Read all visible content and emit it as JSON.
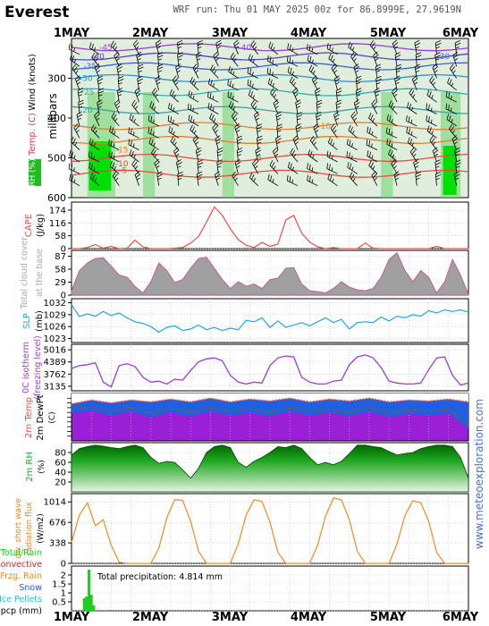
{
  "header": {
    "location": "Everest",
    "run_info": "WRF run: Thu 01 MAY 2025 00z for 86.8999E, 27.9619N"
  },
  "date_labels": [
    "1MAY",
    "2MAY",
    "3MAY",
    "4MAY",
    "5MAY",
    "6MAY"
  ],
  "watermark": "www.meteoexploration.com",
  "colors": {
    "background": "#ffffff",
    "upper_fill": "#d9ead9",
    "rh_green": "#00cc00",
    "cape": "#e8504a",
    "cloud": "#a0a0a0",
    "slp": "#2aa3df",
    "iso0": "#9b3fd0",
    "temp_band": "#9b1fd6",
    "sw": "#ee8a2a",
    "precip": "#1fcc1f",
    "watermark": "#4a6fd0"
  },
  "chart_data": [
    {
      "type": "contour",
      "panel": "upper_air",
      "ylabel": "millibars",
      "left_labels": [
        "Wind (knots)",
        "Temp. (C)",
        "RH (%)"
      ],
      "ylim": [
        600,
        200
      ],
      "yticks": [
        300,
        400,
        500,
        600
      ],
      "contour_labels": [
        "-45",
        "-40",
        "-35",
        "-30",
        "-25",
        "-20",
        "-15",
        "-10",
        "-5",
        "-5",
        "-10",
        "-5",
        "-40",
        "-30"
      ]
    },
    {
      "type": "line",
      "panel": "cape",
      "label": "CAPE",
      "unit": "(J/kg)",
      "yticks": [
        0,
        58,
        116,
        174
      ],
      "ylim": [
        0,
        210
      ],
      "x": [
        0,
        0.1,
        0.2,
        0.3,
        0.4,
        0.5,
        0.6,
        0.7,
        0.8,
        0.9,
        1.0,
        1.1,
        1.2,
        1.3,
        1.4,
        1.5,
        1.6,
        1.7,
        1.8,
        1.9,
        2.0,
        2.1,
        2.2,
        2.3,
        2.4,
        2.5,
        2.6,
        2.7,
        2.8,
        2.9,
        3.0,
        3.1,
        3.2,
        3.3,
        3.4,
        3.5,
        3.6,
        3.7,
        3.8,
        3.9,
        4.0,
        4.1,
        4.2,
        4.3,
        4.4,
        4.5,
        4.6,
        4.7,
        4.8,
        4.9,
        5.0
      ],
      "values": [
        0,
        0,
        5,
        18,
        2,
        10,
        0,
        2,
        38,
        8,
        0,
        0,
        0,
        2,
        5,
        25,
        55,
        120,
        188,
        150,
        90,
        40,
        15,
        5,
        28,
        10,
        20,
        130,
        150,
        70,
        30,
        8,
        0,
        5,
        0,
        0,
        0,
        25,
        2,
        0,
        0,
        0,
        0,
        0,
        0,
        0,
        10,
        0,
        0,
        0,
        0
      ]
    },
    {
      "type": "area",
      "panel": "cloud",
      "label": "Total cloud cover",
      "sublabel": "at the base",
      "unit": "%",
      "yticks": [
        0,
        29,
        58,
        87
      ],
      "ylim": [
        0,
        100
      ],
      "x": [
        0,
        0.1,
        0.2,
        0.3,
        0.4,
        0.5,
        0.6,
        0.7,
        0.8,
        0.9,
        1.0,
        1.1,
        1.2,
        1.3,
        1.4,
        1.5,
        1.6,
        1.7,
        1.8,
        1.9,
        2.0,
        2.1,
        2.2,
        2.3,
        2.4,
        2.5,
        2.6,
        2.7,
        2.8,
        2.9,
        3.0,
        3.1,
        3.2,
        3.3,
        3.4,
        3.5,
        3.6,
        3.7,
        3.8,
        3.9,
        4.0,
        4.1,
        4.2,
        4.3,
        4.4,
        4.5,
        4.6,
        4.7,
        4.8,
        4.9,
        5.0
      ],
      "values": [
        10,
        55,
        72,
        82,
        84,
        65,
        45,
        40,
        20,
        5,
        30,
        72,
        55,
        28,
        35,
        60,
        82,
        85,
        60,
        35,
        15,
        30,
        20,
        25,
        15,
        35,
        38,
        60,
        62,
        25,
        10,
        8,
        5,
        15,
        30,
        18,
        12,
        10,
        15,
        40,
        80,
        95,
        55,
        30,
        55,
        40,
        5,
        30,
        80,
        45,
        2
      ]
    },
    {
      "type": "line",
      "panel": "slp",
      "label": "SLP",
      "unit": "(mb)",
      "yticks": [
        1023,
        1026,
        1029,
        1032
      ],
      "ylim": [
        1022,
        1033
      ],
      "x": [
        0,
        0.1,
        0.2,
        0.3,
        0.4,
        0.5,
        0.6,
        0.7,
        0.8,
        0.9,
        1.0,
        1.1,
        1.2,
        1.3,
        1.4,
        1.5,
        1.6,
        1.7,
        1.8,
        1.9,
        2.0,
        2.1,
        2.2,
        2.3,
        2.4,
        2.5,
        2.6,
        2.7,
        2.8,
        2.9,
        3.0,
        3.1,
        3.2,
        3.3,
        3.4,
        3.5,
        3.6,
        3.7,
        3.8,
        3.9,
        4.0,
        4.1,
        4.2,
        4.3,
        4.4,
        4.5,
        4.6,
        4.7,
        4.8,
        4.9,
        5.0
      ],
      "values": [
        1031.5,
        1028.5,
        1029.2,
        1028.6,
        1029.8,
        1028.8,
        1029.4,
        1028.2,
        1027.2,
        1026.8,
        1026.0,
        1024.6,
        1025.8,
        1026.2,
        1025.0,
        1025.4,
        1026.4,
        1025.2,
        1025.8,
        1025.0,
        1025.6,
        1025.2,
        1027.6,
        1027.2,
        1028.2,
        1025.8,
        1027.4,
        1025.8,
        1026.4,
        1027.0,
        1026.2,
        1027.2,
        1028.2,
        1027.0,
        1027.8,
        1025.4,
        1027.0,
        1027.2,
        1027.0,
        1028.4,
        1027.4,
        1028.6,
        1028.2,
        1029.0,
        1028.6,
        1030.0,
        1029.4,
        1030.2,
        1029.8,
        1030.2,
        1029.6
      ]
    },
    {
      "type": "line",
      "panel": "iso0",
      "label": "0C isotherm",
      "sublabel": "(freezing level)",
      "yticks": [
        3135,
        3762,
        4389,
        5016
      ],
      "ylim": [
        2900,
        5300
      ],
      "x": [
        0,
        0.1,
        0.2,
        0.3,
        0.4,
        0.5,
        0.6,
        0.7,
        0.8,
        0.9,
        1.0,
        1.1,
        1.2,
        1.3,
        1.4,
        1.5,
        1.6,
        1.7,
        1.8,
        1.9,
        2.0,
        2.1,
        2.2,
        2.3,
        2.4,
        2.5,
        2.6,
        2.7,
        2.8,
        2.9,
        3.0,
        3.1,
        3.2,
        3.3,
        3.4,
        3.5,
        3.6,
        3.7,
        3.8,
        3.9,
        4.0,
        4.1,
        4.2,
        4.3,
        4.4,
        4.5,
        4.6,
        4.7,
        4.8,
        4.9,
        5.0
      ],
      "values": [
        4050,
        4200,
        4250,
        4350,
        3350,
        3100,
        4200,
        4300,
        4150,
        3600,
        3350,
        3400,
        3250,
        3500,
        3450,
        3950,
        4400,
        4550,
        4600,
        4450,
        3700,
        3350,
        3250,
        3350,
        3300,
        4200,
        4600,
        4700,
        4650,
        3600,
        3350,
        3250,
        3250,
        3400,
        3450,
        4250,
        4650,
        4750,
        4600,
        4100,
        3400,
        3300,
        3250,
        3250,
        3300,
        4000,
        4600,
        4650,
        3700,
        3200,
        3300
      ]
    },
    {
      "type": "line",
      "panel": "temp",
      "label": "2m Temp",
      "sublabel": "2m DewPt",
      "unit": "(C)",
      "ylim": [
        -55,
        -5
      ],
      "x": [
        0,
        0.25,
        0.5,
        0.75,
        1.0,
        1.25,
        1.5,
        1.75,
        2.0,
        2.25,
        2.5,
        2.75,
        3.0,
        3.25,
        3.5,
        3.75,
        4.0,
        4.25,
        4.5,
        4.75,
        5.0
      ],
      "series": [
        {
          "name": "2m Temp",
          "values": [
            -16,
            -12,
            -15,
            -12,
            -14,
            -11,
            -14,
            -10,
            -14,
            -11,
            -13,
            -10,
            -14,
            -11,
            -13,
            -10,
            -14,
            -12,
            -13,
            -11,
            -14
          ]
        },
        {
          "name": "2m DewPt",
          "values": [
            -22,
            -19,
            -24,
            -20,
            -26,
            -21,
            -25,
            -20,
            -24,
            -21,
            -25,
            -20,
            -24,
            -21,
            -25,
            -20,
            -26,
            -22,
            -24,
            -22,
            -38
          ]
        }
      ]
    },
    {
      "type": "area",
      "panel": "rh",
      "label": "2m RH",
      "unit": "(%)",
      "yticks": [
        0,
        20,
        40,
        60,
        80
      ],
      "ylim": [
        0,
        100
      ],
      "x": [
        0,
        0.1,
        0.2,
        0.3,
        0.4,
        0.5,
        0.6,
        0.7,
        0.8,
        0.9,
        1.0,
        1.1,
        1.2,
        1.3,
        1.4,
        1.5,
        1.6,
        1.7,
        1.8,
        1.9,
        2.0,
        2.1,
        2.2,
        2.3,
        2.4,
        2.5,
        2.6,
        2.7,
        2.8,
        2.9,
        3.0,
        3.1,
        3.2,
        3.3,
        3.4,
        3.5,
        3.6,
        3.7,
        3.8,
        3.9,
        4.0,
        4.1,
        4.2,
        4.3,
        4.4,
        4.5,
        4.6,
        4.7,
        4.8,
        4.9,
        5.0
      ],
      "values": [
        75,
        88,
        92,
        95,
        93,
        90,
        88,
        92,
        95,
        90,
        70,
        58,
        62,
        60,
        45,
        28,
        48,
        80,
        92,
        95,
        90,
        60,
        50,
        62,
        70,
        80,
        92,
        90,
        95,
        88,
        70,
        55,
        60,
        55,
        62,
        78,
        95,
        95,
        92,
        90,
        82,
        75,
        78,
        80,
        88,
        92,
        95,
        95,
        92,
        70,
        28
      ]
    },
    {
      "type": "line",
      "panel": "sw",
      "label": "dw. short wave",
      "sublabel": "radiation flux",
      "unit": "(W/m2)",
      "yticks": [
        0,
        338,
        676,
        1014
      ],
      "ylim": [
        0,
        1150
      ],
      "x": [
        0,
        0.1,
        0.2,
        0.3,
        0.4,
        0.5,
        0.6,
        0.7,
        0.8,
        0.9,
        1.0,
        1.1,
        1.2,
        1.3,
        1.4,
        1.5,
        1.6,
        1.7,
        1.8,
        1.9,
        2.0,
        2.1,
        2.2,
        2.3,
        2.4,
        2.5,
        2.6,
        2.7,
        2.8,
        2.9,
        3.0,
        3.1,
        3.2,
        3.3,
        3.4,
        3.5,
        3.6,
        3.7,
        3.8,
        3.9,
        4.0,
        4.1,
        4.2,
        4.3,
        4.4,
        4.5,
        4.6,
        4.7,
        4.8,
        4.9,
        5.0
      ],
      "values": [
        350,
        800,
        1000,
        620,
        720,
        300,
        20,
        0,
        0,
        0,
        0,
        250,
        750,
        1050,
        1040,
        700,
        200,
        0,
        0,
        0,
        0,
        320,
        800,
        1050,
        1020,
        680,
        180,
        0,
        0,
        0,
        0,
        300,
        780,
        1080,
        1050,
        720,
        200,
        0,
        0,
        0,
        0,
        320,
        790,
        1030,
        1000,
        690,
        180,
        0,
        0,
        0,
        0
      ]
    },
    {
      "type": "bar",
      "panel": "precip",
      "ylabel": "pcp (mm)",
      "yticks": [
        0,
        0.5,
        1,
        1.5,
        2
      ],
      "ylim": [
        0,
        2.5
      ],
      "legend": [
        "Total/Rain",
        "Convective",
        "Frzg. Rain",
        "Snow",
        "Ice Pellets"
      ],
      "annotation": "Total precipitation: 4.814 mm",
      "x": [
        0.16,
        0.19,
        0.22,
        0.25,
        0.28
      ],
      "values": [
        0.7,
        0.8,
        2.3,
        0.9,
        0.3
      ]
    }
  ]
}
